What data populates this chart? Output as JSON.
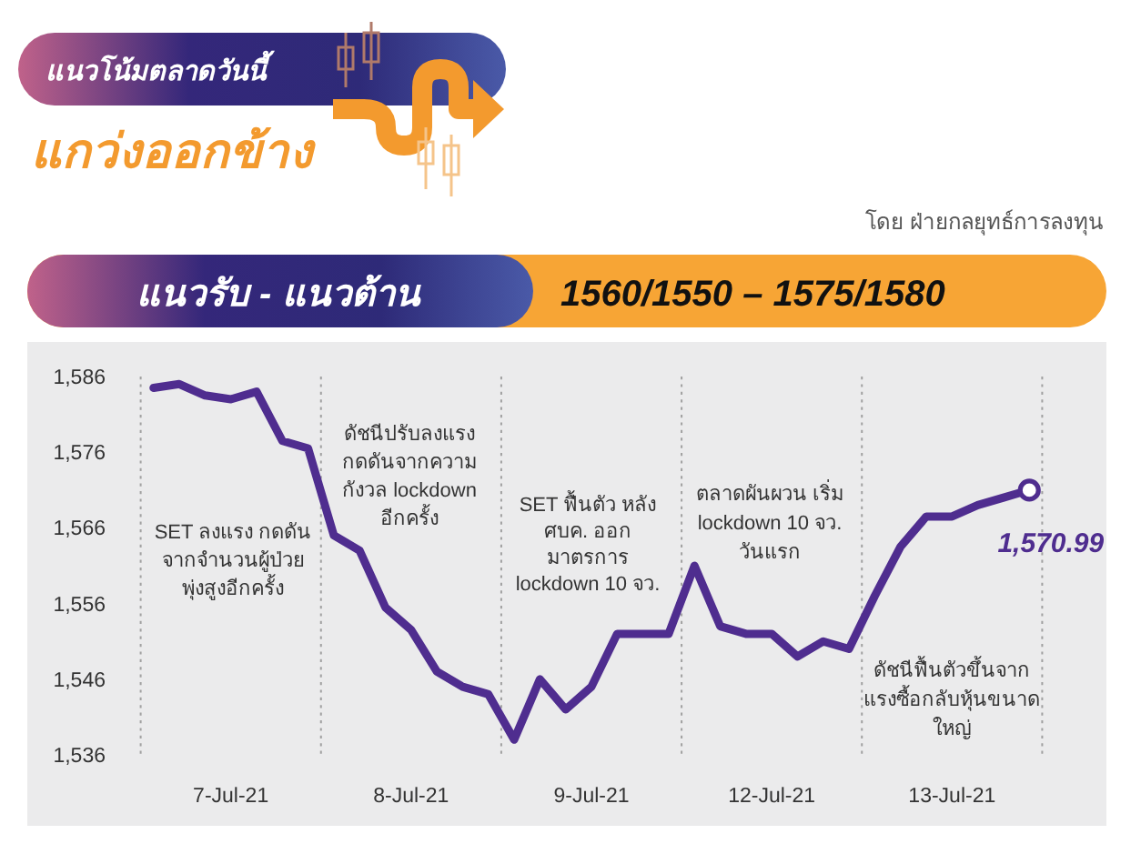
{
  "chart_data": {
    "type": "line",
    "title": "แนวโน้มตลาดวันนี้",
    "subtitle": "แกว่งออกข้าง",
    "annotations": [
      "โดย ฝ่ายกลยุทธ์การลงทุน",
      "แนวรับ - แนวต้าน",
      "1560/1550 – 1575/1580",
      "SET ลงแรง กดดัน\nจากจำนวนผู้ป่วย\nพุ่งสูงอีกครั้ง",
      "ดัชนีปรับลงแรง\nกดดันจากความ\nกังวล lockdown\nอีกครั้ง",
      "SET ฟื้นตัว หลัง\nศบค. ออก\nมาตรการ\nlockdown 10 จว.",
      "ตลาดผันผวน เริ่ม\nlockdown 10 จว.\nวันแรก",
      "ดัชนีฟื้นตัวขึ้นจาก\nแรงซื้อกลับหุ้นขนาด\nใหญ่"
    ],
    "categories": [
      null,
      null,
      null,
      "7-Jul-21",
      null,
      null,
      null,
      null,
      null,
      null,
      "8-Jul-21",
      null,
      null,
      null,
      null,
      null,
      null,
      "9-Jul-21",
      null,
      null,
      null,
      null,
      null,
      null,
      "12-Jul-21",
      null,
      null,
      null,
      null,
      null,
      null,
      "13-Jul-21",
      null,
      null,
      null
    ],
    "ylim": [
      1536,
      1586
    ],
    "yticks": [
      {
        "value": 1536,
        "label": "1,536"
      },
      {
        "value": 1546,
        "label": "1,546"
      },
      {
        "value": 1556,
        "label": "1,556"
      },
      {
        "value": 1566,
        "label": "1,566"
      },
      {
        "value": 1576,
        "label": "1,576"
      },
      {
        "value": 1586,
        "label": "1,586"
      }
    ],
    "grid": "x",
    "series": [
      {
        "type": "line",
        "color": "#4f2d8f",
        "line_style": "solid",
        "values": [
          1584.5,
          1585,
          1583.5,
          1583,
          1584,
          1577.5,
          1576.5,
          1565,
          1563,
          1555.5,
          1552.5,
          1547,
          1545,
          1544,
          1538,
          1546,
          1542,
          1545,
          1552,
          1552,
          1552,
          1561,
          1553,
          1552,
          1552,
          1549,
          1551,
          1550,
          1557,
          1563.5,
          1567.5,
          1567.5,
          1569,
          1570,
          1571
        ]
      },
      {
        "type": "scatter",
        "color": "#4f2d8f",
        "marker": "circle",
        "values": [
          null,
          null,
          null,
          null,
          null,
          null,
          null,
          null,
          null,
          null,
          null,
          null,
          null,
          null,
          null,
          null,
          null,
          null,
          null,
          null,
          null,
          null,
          null,
          null,
          null,
          null,
          null,
          null,
          null,
          null,
          null,
          null,
          null,
          null,
          1570.99
        ],
        "value_labels": [
          null,
          null,
          null,
          null,
          null,
          null,
          null,
          null,
          null,
          null,
          null,
          null,
          null,
          null,
          null,
          null,
          null,
          null,
          null,
          null,
          null,
          null,
          null,
          null,
          null,
          null,
          null,
          null,
          null,
          null,
          null,
          null,
          null,
          null,
          "1,570.99"
        ]
      }
    ]
  }
}
